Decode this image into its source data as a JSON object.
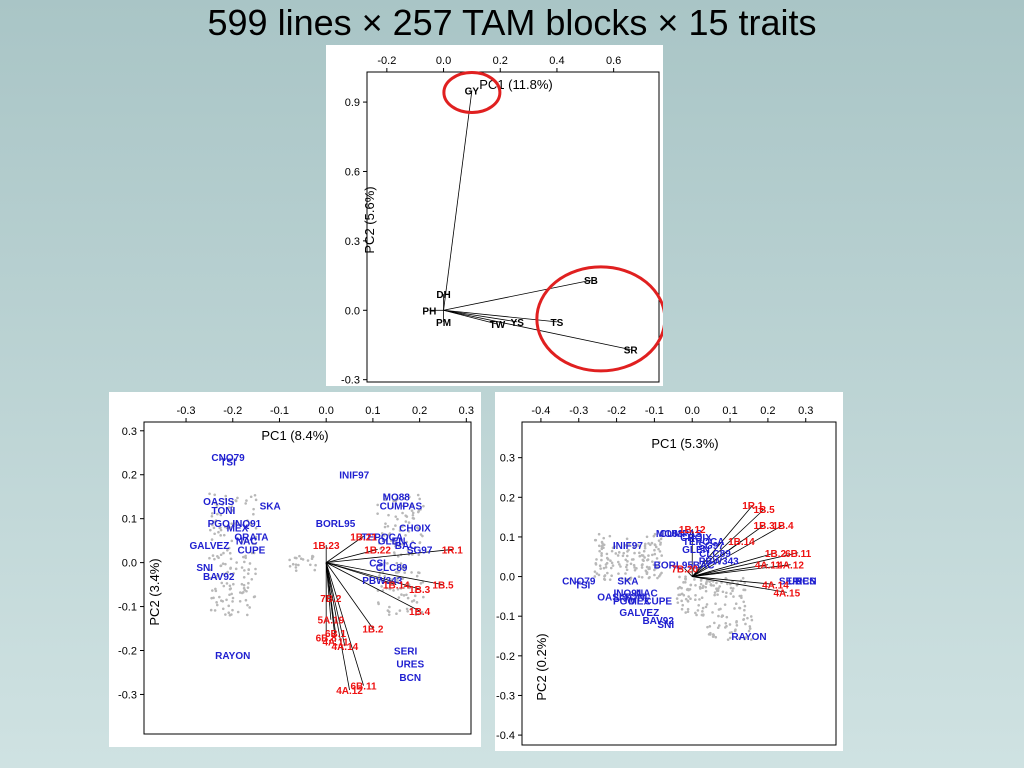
{
  "title": "599 lines × 257 TAM blocks × 15 traits",
  "colors": {
    "line_label": "#1f1fd0",
    "block_label": "#ee1111",
    "trait_label": "#000000",
    "highlight": "#e02020",
    "points": "#b8b8b8"
  },
  "chart_data": [
    {
      "type": "scatter",
      "subtype": "biplot-traits",
      "xlabel": "PC1 (11.8%)",
      "ylabel": "PC2 (5.6%)",
      "xlim": [
        -0.27,
        0.76
      ],
      "ylim": [
        -0.31,
        1.03
      ],
      "xticks": [
        "-0.2",
        "0.0",
        "0.2",
        "0.4",
        "0.6"
      ],
      "yticks": [
        "-0.3",
        "0.0",
        "0.3",
        "0.6",
        "0.9"
      ],
      "traits": [
        {
          "label": "GY",
          "x": 0.1,
          "y": 0.95
        },
        {
          "label": "DH",
          "x": 0.0,
          "y": 0.07
        },
        {
          "label": "PH",
          "x": -0.05,
          "y": 0.0
        },
        {
          "label": "PM",
          "x": 0.0,
          "y": -0.05
        },
        {
          "label": "TW",
          "x": 0.19,
          "y": -0.06
        },
        {
          "label": "YS",
          "x": 0.26,
          "y": -0.05
        },
        {
          "label": "TS",
          "x": 0.4,
          "y": -0.05
        },
        {
          "label": "SB",
          "x": 0.52,
          "y": 0.13
        },
        {
          "label": "SR",
          "x": 0.66,
          "y": -0.17
        }
      ],
      "highlighted": [
        "GY",
        "SB",
        "TS",
        "SR"
      ]
    },
    {
      "type": "scatter",
      "subtype": "biplot-lines-blocks",
      "xlabel": "PC1 (8.4%)",
      "ylabel": "PC2 (3.4%)",
      "xlim": [
        -0.39,
        0.31
      ],
      "ylim": [
        -0.39,
        0.32
      ],
      "xticks": [
        "-0.3",
        "-0.2",
        "-0.1",
        "0.0",
        "0.1",
        "0.2",
        "0.3"
      ],
      "yticks": [
        "-0.3",
        "-0.2",
        "-0.1",
        "0.0",
        "0.1",
        "0.2",
        "0.3"
      ],
      "lines": [
        {
          "label": "CNO79",
          "x": -0.21,
          "y": 0.24
        },
        {
          "label": "TSI",
          "x": -0.21,
          "y": 0.23
        },
        {
          "label": "OASIS",
          "x": -0.23,
          "y": 0.14
        },
        {
          "label": "SKA",
          "x": -0.12,
          "y": 0.13
        },
        {
          "label": "TONI",
          "x": -0.22,
          "y": 0.12
        },
        {
          "label": "PGO",
          "x": -0.23,
          "y": 0.09
        },
        {
          "label": "MEX",
          "x": -0.19,
          "y": 0.08
        },
        {
          "label": "INQ91",
          "x": -0.17,
          "y": 0.09
        },
        {
          "label": "ORATA",
          "x": -0.16,
          "y": 0.06
        },
        {
          "label": "GALVEZ",
          "x": -0.25,
          "y": 0.04
        },
        {
          "label": "NAC",
          "x": -0.17,
          "y": 0.05
        },
        {
          "label": "CUPE",
          "x": -0.16,
          "y": 0.03
        },
        {
          "label": "SNI",
          "x": -0.26,
          "y": -0.01
        },
        {
          "label": "BAV92",
          "x": -0.23,
          "y": -0.03
        },
        {
          "label": "RAYON",
          "x": -0.2,
          "y": -0.21
        },
        {
          "label": "INIF97",
          "x": 0.06,
          "y": 0.2
        },
        {
          "label": "MO88",
          "x": 0.15,
          "y": 0.15
        },
        {
          "label": "CUMPAS",
          "x": 0.16,
          "y": 0.13
        },
        {
          "label": "BORL95",
          "x": 0.02,
          "y": 0.09
        },
        {
          "label": "CHOIX",
          "x": 0.19,
          "y": 0.08
        },
        {
          "label": "TEPOCA",
          "x": 0.12,
          "y": 0.06
        },
        {
          "label": "GLEN",
          "x": 0.14,
          "y": 0.05
        },
        {
          "label": "BAC",
          "x": 0.17,
          "y": 0.04
        },
        {
          "label": "SG97",
          "x": 0.2,
          "y": 0.03
        },
        {
          "label": "CSI",
          "x": 0.11,
          "y": 0.0
        },
        {
          "label": "CLC89",
          "x": 0.14,
          "y": -0.01
        },
        {
          "label": "PBW343",
          "x": 0.12,
          "y": -0.04
        },
        {
          "label": "SERI",
          "x": 0.17,
          "y": -0.2
        },
        {
          "label": "URES",
          "x": 0.18,
          "y": -0.23
        },
        {
          "label": "BCN",
          "x": 0.18,
          "y": -0.26
        }
      ],
      "blocks": [
        {
          "label": "1B.23",
          "x": 0.0,
          "y": 0.04
        },
        {
          "label": "1B.21",
          "x": 0.08,
          "y": 0.06
        },
        {
          "label": "1B.22",
          "x": 0.11,
          "y": 0.03
        },
        {
          "label": "1R.1",
          "x": 0.27,
          "y": 0.03
        },
        {
          "label": "1B.14",
          "x": 0.15,
          "y": -0.05
        },
        {
          "label": "1B.3",
          "x": 0.2,
          "y": -0.06
        },
        {
          "label": "1B.5",
          "x": 0.25,
          "y": -0.05
        },
        {
          "label": "1B.4",
          "x": 0.2,
          "y": -0.11
        },
        {
          "label": "7B.2",
          "x": 0.01,
          "y": -0.08
        },
        {
          "label": "5A.19",
          "x": 0.01,
          "y": -0.13
        },
        {
          "label": "6B.1",
          "x": 0.02,
          "y": -0.16
        },
        {
          "label": "1B.2",
          "x": 0.1,
          "y": -0.15
        },
        {
          "label": "6B.8",
          "x": 0.0,
          "y": -0.17
        },
        {
          "label": "4A.11",
          "x": 0.02,
          "y": -0.18
        },
        {
          "label": "4A.14",
          "x": 0.04,
          "y": -0.19
        },
        {
          "label": "6B.11",
          "x": 0.08,
          "y": -0.28
        },
        {
          "label": "4A.12",
          "x": 0.05,
          "y": -0.29
        }
      ]
    },
    {
      "type": "scatter",
      "subtype": "biplot-lines-blocks",
      "xlabel": "PC1 (5.3%)",
      "ylabel": "PC2 (0.2%)",
      "xlim": [
        -0.45,
        0.38
      ],
      "ylim": [
        -0.425,
        0.39
      ],
      "xticks": [
        "-0.4",
        "-0.3",
        "-0.2",
        "-0.1",
        "0.0",
        "0.1",
        "0.2",
        "0.3"
      ],
      "yticks": [
        "-0.4",
        "-0.3",
        "-0.2",
        "-0.1",
        "0.0",
        "0.1",
        "0.2",
        "0.3"
      ],
      "lines": [
        {
          "label": "CNO79",
          "x": -0.3,
          "y": -0.01
        },
        {
          "label": "TSI",
          "x": -0.29,
          "y": -0.02
        },
        {
          "label": "SKA",
          "x": -0.17,
          "y": -0.01
        },
        {
          "label": "INQ91",
          "x": -0.17,
          "y": -0.04
        },
        {
          "label": "OASIS",
          "x": -0.21,
          "y": -0.05
        },
        {
          "label": "TONI",
          "x": -0.15,
          "y": -0.05
        },
        {
          "label": "NAC",
          "x": -0.12,
          "y": -0.04
        },
        {
          "label": "PGO",
          "x": -0.18,
          "y": -0.06
        },
        {
          "label": "MEX",
          "x": -0.14,
          "y": -0.06
        },
        {
          "label": "CUPE",
          "x": -0.09,
          "y": -0.06
        },
        {
          "label": "GALVEZ",
          "x": -0.14,
          "y": -0.09
        },
        {
          "label": "BAV92",
          "x": -0.09,
          "y": -0.11
        },
        {
          "label": "SNI",
          "x": -0.07,
          "y": -0.12
        },
        {
          "label": "RAYON",
          "x": 0.15,
          "y": -0.15
        },
        {
          "label": "INIF97",
          "x": -0.17,
          "y": 0.08
        },
        {
          "label": "MO88",
          "x": -0.06,
          "y": 0.11
        },
        {
          "label": "CUMPAS",
          "x": -0.03,
          "y": 0.11
        },
        {
          "label": "CHOIX",
          "x": 0.01,
          "y": 0.1
        },
        {
          "label": "TEPOCA",
          "x": 0.03,
          "y": 0.09
        },
        {
          "label": "SG97",
          "x": 0.05,
          "y": 0.08
        },
        {
          "label": "GLEN",
          "x": 0.01,
          "y": 0.07
        },
        {
          "label": "CLC89",
          "x": 0.06,
          "y": 0.06
        },
        {
          "label": "BORL95",
          "x": -0.05,
          "y": 0.03
        },
        {
          "label": "PBW343",
          "x": 0.07,
          "y": 0.04
        },
        {
          "label": "BAC",
          "x": 0.03,
          "y": 0.03
        },
        {
          "label": "SERI",
          "x": 0.26,
          "y": -0.01
        },
        {
          "label": "URES",
          "x": 0.29,
          "y": -0.01
        },
        {
          "label": "BCN",
          "x": 0.3,
          "y": -0.01
        }
      ],
      "blocks": [
        {
          "label": "1R.1",
          "x": 0.16,
          "y": 0.18
        },
        {
          "label": "1B.5",
          "x": 0.19,
          "y": 0.17
        },
        {
          "label": "1B.3",
          "x": 0.19,
          "y": 0.13
        },
        {
          "label": "1B.4",
          "x": 0.24,
          "y": 0.13
        },
        {
          "label": "1B.12",
          "x": 0.0,
          "y": 0.12
        },
        {
          "label": "1B.14",
          "x": 0.13,
          "y": 0.09
        },
        {
          "label": "1B.2",
          "x": 0.22,
          "y": 0.06
        },
        {
          "label": "6B.11",
          "x": 0.28,
          "y": 0.06
        },
        {
          "label": "4A.11",
          "x": 0.2,
          "y": 0.03
        },
        {
          "label": "4A.12",
          "x": 0.26,
          "y": 0.03
        },
        {
          "label": "7B.20",
          "x": -0.02,
          "y": 0.02
        },
        {
          "label": "4A.14",
          "x": 0.22,
          "y": -0.02
        },
        {
          "label": "4A.15",
          "x": 0.25,
          "y": -0.04
        }
      ]
    }
  ]
}
